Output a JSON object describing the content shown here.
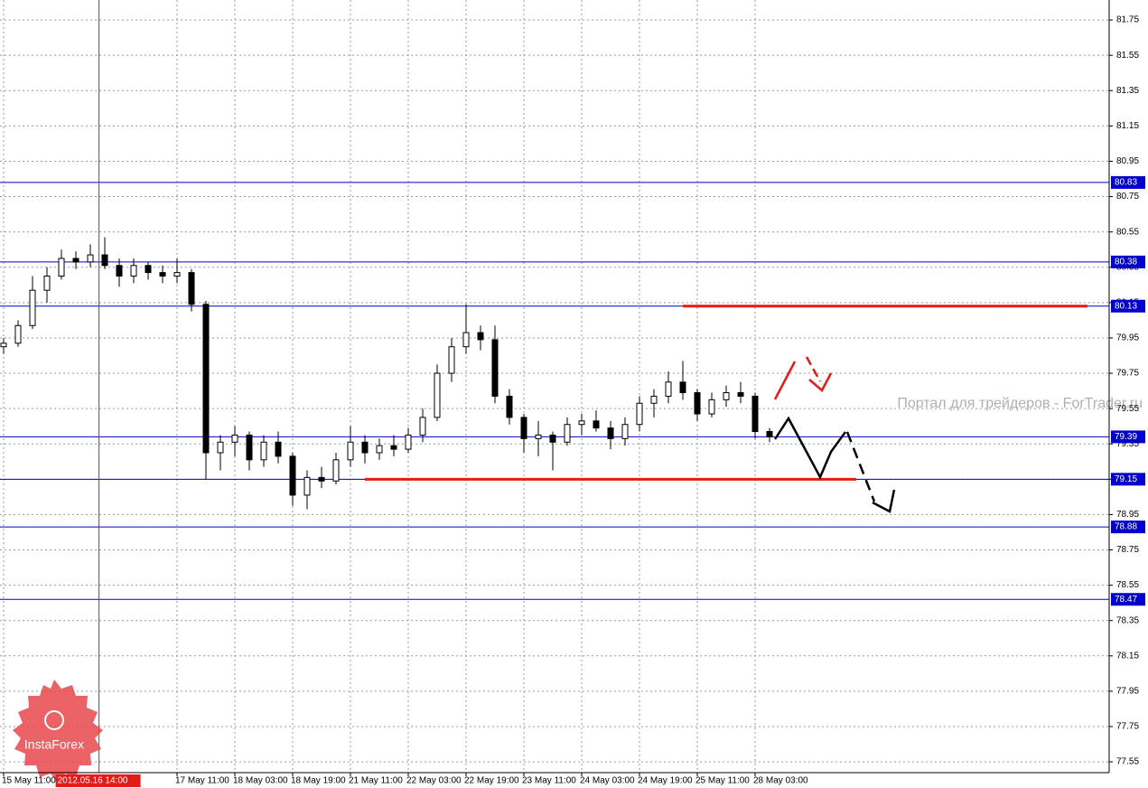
{
  "chart_data": {
    "type": "candlestick",
    "categories": [
      "15 May 11:00",
      null,
      null,
      null,
      null,
      null,
      null,
      null,
      null,
      null,
      null,
      null,
      "17 May 11:00",
      null,
      null,
      null,
      "18 May 03:00",
      null,
      null,
      null,
      "18 May 19:00",
      null,
      null,
      null,
      "21 May 11:00",
      null,
      null,
      null,
      "22 May 03:00",
      null,
      null,
      null,
      "22 May 19:00",
      null,
      null,
      null,
      "23 May 11:00",
      null,
      null,
      null,
      "24 May 03:00",
      null,
      null,
      null,
      "24 May 19:00",
      null,
      null,
      null,
      "25 May 11:00",
      null,
      null,
      null,
      "28 May 03:00",
      null
    ],
    "open": [
      79.9,
      79.92,
      80.02,
      80.22,
      80.3,
      80.4,
      80.38,
      80.42,
      80.36,
      80.3,
      80.36,
      80.32,
      80.3,
      80.32,
      80.14,
      79.3,
      79.36,
      79.4,
      79.26,
      79.36,
      79.28,
      79.06,
      79.16,
      79.14,
      79.26,
      79.36,
      79.3,
      79.34,
      79.32,
      79.4,
      79.5,
      79.75,
      79.9,
      79.98,
      79.94,
      79.62,
      79.5,
      79.38,
      79.4,
      79.36,
      79.46,
      79.48,
      79.44,
      79.38,
      79.46,
      79.58,
      79.62,
      79.7,
      79.64,
      79.52,
      79.6,
      79.64,
      79.62,
      79.42
    ],
    "high": [
      79.95,
      80.05,
      80.3,
      80.35,
      80.45,
      80.44,
      80.48,
      80.52,
      80.4,
      80.4,
      80.38,
      80.36,
      80.4,
      80.34,
      80.16,
      79.4,
      79.45,
      79.42,
      79.4,
      79.42,
      79.3,
      79.2,
      79.22,
      79.3,
      79.45,
      79.4,
      79.38,
      79.4,
      79.44,
      79.55,
      79.8,
      79.95,
      80.14,
      80.02,
      80.02,
      79.66,
      79.52,
      79.48,
      79.42,
      79.5,
      79.52,
      79.54,
      79.48,
      79.5,
      79.62,
      79.66,
      79.76,
      79.82,
      79.66,
      79.64,
      79.68,
      79.7,
      79.64,
      79.44
    ],
    "low": [
      79.86,
      79.9,
      80.0,
      80.15,
      80.28,
      80.34,
      80.35,
      80.34,
      80.24,
      80.26,
      80.28,
      80.26,
      80.26,
      80.1,
      79.15,
      79.2,
      79.28,
      79.2,
      79.22,
      79.24,
      79.0,
      78.98,
      79.1,
      79.12,
      79.22,
      79.24,
      79.26,
      79.28,
      79.3,
      79.36,
      79.48,
      79.7,
      79.86,
      79.88,
      79.58,
      79.46,
      79.3,
      79.28,
      79.2,
      79.34,
      79.4,
      79.42,
      79.32,
      79.34,
      79.42,
      79.5,
      79.58,
      79.6,
      79.48,
      79.5,
      79.56,
      79.58,
      79.38,
      79.36
    ],
    "close": [
      79.92,
      80.02,
      80.22,
      80.3,
      80.4,
      80.38,
      80.42,
      80.36,
      80.3,
      80.36,
      80.32,
      80.3,
      80.32,
      80.14,
      79.3,
      79.36,
      79.4,
      79.26,
      79.36,
      79.28,
      79.06,
      79.16,
      79.14,
      79.26,
      79.36,
      79.3,
      79.34,
      79.32,
      79.4,
      79.5,
      79.75,
      79.9,
      79.98,
      79.94,
      79.62,
      79.5,
      79.38,
      79.4,
      79.36,
      79.46,
      79.48,
      79.44,
      79.38,
      79.46,
      79.58,
      79.62,
      79.7,
      79.64,
      79.52,
      79.6,
      79.64,
      79.62,
      79.42,
      79.39
    ],
    "ylim": [
      77.489,
      81.863
    ],
    "yticks": [
      77.55,
      77.75,
      77.95,
      78.15,
      78.35,
      78.55,
      78.75,
      78.95,
      79.15,
      79.35,
      79.55,
      79.75,
      79.95,
      80.15,
      80.35,
      80.55,
      80.75,
      80.95,
      81.15,
      81.35,
      81.55,
      81.75
    ],
    "grid": true,
    "levels": [
      80.83,
      80.38,
      80.13,
      79.39,
      79.15,
      78.88,
      78.47
    ],
    "level_color": "#0000cc",
    "red_lines": [
      {
        "value": 80.13,
        "from": 47,
        "to": 75
      },
      {
        "value": 79.15,
        "from": 25,
        "to": 59
      }
    ],
    "red_line_color": "#e41b17",
    "crosshair": {
      "index": 6.6,
      "label": "2012.05.16 14:00"
    },
    "watermark": "Портал для трейдеров - ForTrader.ru",
    "logo": "InstaForex"
  }
}
